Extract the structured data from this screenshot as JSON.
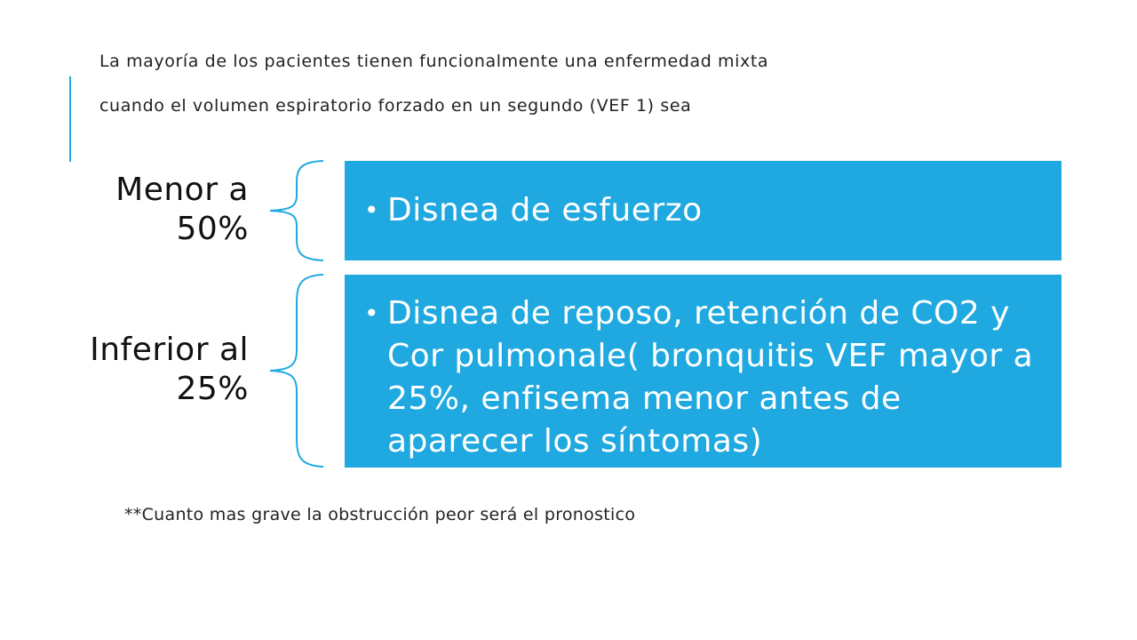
{
  "intro": {
    "line1": "La mayoría de los pacientes tienen funcionalmente una enfermedad mixta",
    "line2": "cuando el volumen espiratorio forzado en un segundo (VEF 1) sea"
  },
  "levels": [
    {
      "label_line1": "Menor a",
      "label_line2": "50%",
      "description": "Disnea de esfuerzo"
    },
    {
      "label_line1": "Inferior al",
      "label_line2": "25%",
      "description": "Disnea de reposo, retención de CO2 y Cor pulmonale( bronquitis VEF mayor a 25%, enfisema menor antes de aparecer los síntomas)"
    }
  ],
  "footnote": "**Cuanto mas grave la obstrucción peor será el pronostico",
  "colors": {
    "accent": "#1fa9e0",
    "box_text": "#ffffff",
    "body_text": "#222222"
  }
}
